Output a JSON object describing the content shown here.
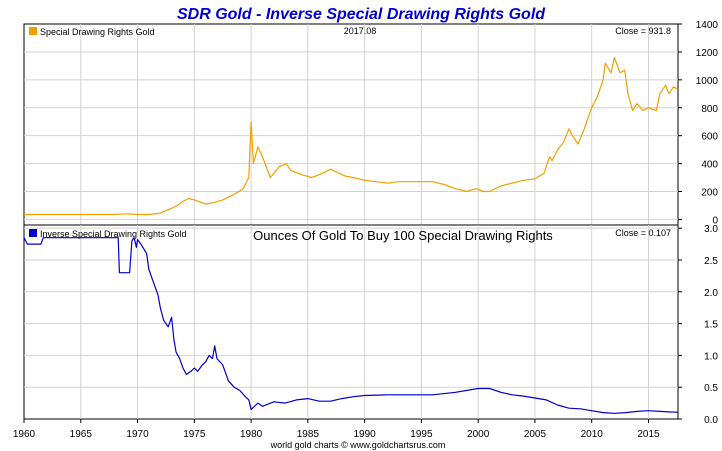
{
  "chart_data": {
    "type": "line",
    "title": "SDR Gold - Inverse Special Drawing Rights Gold",
    "footer": "world gold charts © www.goldchartsrus.com",
    "xlim": [
      1960,
      2017.6
    ],
    "xticks": [
      1960,
      1965,
      1970,
      1975,
      1980,
      1985,
      1990,
      1995,
      2000,
      2005,
      2010,
      2015
    ],
    "xtick_labels": [
      "1960",
      "1965",
      "1970",
      "1975",
      "1980",
      "1985",
      "1990",
      "1995",
      "2000",
      "2005",
      "2010",
      "2015"
    ],
    "grid": true,
    "panels": [
      {
        "legend": "Special Drawing Rights Gold",
        "date_label": "2017.08",
        "subtitle": "",
        "close_label": "Close = 931.8",
        "color": "#f0a000",
        "ylim": [
          -40,
          1400
        ],
        "yticks": [
          0,
          200,
          400,
          600,
          800,
          1000,
          1200,
          1400
        ],
        "ytick_labels": [
          "0",
          "200",
          "400",
          "600",
          "800",
          "1000",
          "1200",
          "1400"
        ],
        "x": [
          1960,
          1965,
          1968,
          1969,
          1970,
          1971,
          1972,
          1973,
          1973.5,
          1974,
          1974.5,
          1975,
          1976,
          1976.7,
          1977.5,
          1978.5,
          1979.3,
          1979.8,
          1980.0,
          1980.2,
          1980.6,
          1981,
          1981.7,
          1982.5,
          1983.1,
          1983.5,
          1984.5,
          1985.3,
          1986,
          1987,
          1987.5,
          1988.3,
          1989,
          1990,
          1991,
          1992,
          1993,
          1994,
          1995,
          1996,
          1997,
          1998,
          1999,
          1999.8,
          2000.5,
          2001,
          2002,
          2003,
          2004,
          2005,
          2005.8,
          2006.3,
          2006.5,
          2007,
          2007.5,
          2008,
          2008.3,
          2008.8,
          2009.3,
          2010,
          2010.5,
          2011,
          2011.2,
          2011.7,
          2012,
          2012.5,
          2012.9,
          2013.2,
          2013.6,
          2014,
          2014.5,
          2015,
          2015.7,
          2016,
          2016.5,
          2016.8,
          2017.2,
          2017.6
        ],
        "y": [
          35,
          35,
          35,
          40,
          35,
          35,
          45,
          80,
          100,
          130,
          150,
          140,
          110,
          120,
          140,
          180,
          220,
          300,
          700,
          400,
          520,
          450,
          300,
          380,
          400,
          350,
          320,
          300,
          320,
          360,
          340,
          310,
          300,
          280,
          270,
          260,
          270,
          270,
          270,
          270,
          250,
          220,
          200,
          220,
          200,
          200,
          240,
          260,
          280,
          290,
          330,
          450,
          420,
          500,
          550,
          650,
          600,
          540,
          640,
          800,
          880,
          1000,
          1120,
          1050,
          1160,
          1050,
          1070,
          900,
          780,
          830,
          780,
          800,
          780,
          900,
          960,
          900,
          950,
          932
        ]
      },
      {
        "legend": "Inverse Special Drawing Rights Gold",
        "date_label": "",
        "subtitle": "Ounces Of Gold To Buy 100 Special Drawing Rights",
        "close_label": "Close = 0.107",
        "color": "#0000cc",
        "ylim": [
          0,
          3.05
        ],
        "yticks": [
          0,
          0.5,
          1.0,
          1.5,
          2.0,
          2.5,
          3.0
        ],
        "ytick_labels": [
          "0.0",
          "0.5",
          "1.0",
          "1.5",
          "2.0",
          "2.5",
          "3.0"
        ],
        "x": [
          1960,
          1960.3,
          1961.5,
          1961.7,
          1968,
          1968.3,
          1968.4,
          1969.3,
          1969.5,
          1969.7,
          1969.9,
          1970.0,
          1970.3,
          1970.8,
          1971.0,
          1971.3,
          1971.8,
          1972.0,
          1972.3,
          1972.7,
          1973.0,
          1973.2,
          1973.4,
          1973.7,
          1974.0,
          1974.3,
          1974.7,
          1975.0,
          1975.3,
          1975.7,
          1976.0,
          1976.3,
          1976.6,
          1976.8,
          1977.0,
          1977.5,
          1978.0,
          1978.5,
          1979.0,
          1979.5,
          1979.8,
          1980.0,
          1980.3,
          1980.6,
          1981.0,
          1982.0,
          1983.0,
          1984.0,
          1985.0,
          1986.0,
          1987.0,
          1988.0,
          1989.0,
          1990.0,
          1992.0,
          1994.0,
          1996.0,
          1998.0,
          2000.0,
          2001.0,
          2002.0,
          2003.0,
          2004.0,
          2005.0,
          2006.0,
          2007.0,
          2008.0,
          2009.0,
          2010.0,
          2011.0,
          2012.0,
          2013.0,
          2014.0,
          2015.0,
          2016.0,
          2017.0,
          2017.6
        ],
        "y": [
          2.85,
          2.75,
          2.75,
          2.85,
          2.85,
          2.85,
          2.3,
          2.3,
          2.8,
          2.85,
          2.7,
          2.82,
          2.75,
          2.6,
          2.35,
          2.2,
          1.95,
          1.75,
          1.55,
          1.45,
          1.6,
          1.25,
          1.05,
          0.95,
          0.8,
          0.7,
          0.75,
          0.8,
          0.75,
          0.85,
          0.9,
          1.0,
          0.95,
          1.15,
          0.95,
          0.85,
          0.6,
          0.5,
          0.45,
          0.35,
          0.3,
          0.15,
          0.2,
          0.25,
          0.2,
          0.27,
          0.25,
          0.3,
          0.32,
          0.28,
          0.28,
          0.32,
          0.35,
          0.37,
          0.38,
          0.38,
          0.38,
          0.42,
          0.48,
          0.48,
          0.42,
          0.38,
          0.36,
          0.33,
          0.3,
          0.22,
          0.17,
          0.16,
          0.13,
          0.1,
          0.09,
          0.1,
          0.12,
          0.13,
          0.12,
          0.11,
          0.107
        ]
      }
    ]
  }
}
